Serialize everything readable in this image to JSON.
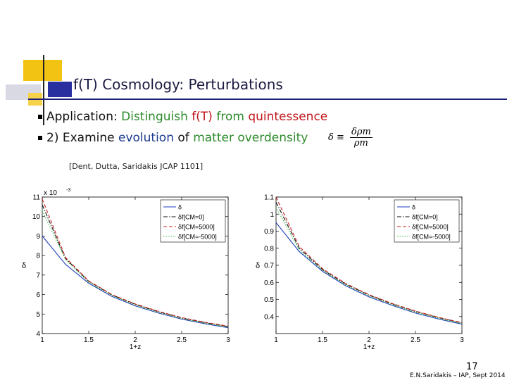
{
  "slide": {
    "title": "f(T) Cosmology: Perturbations",
    "bullet1": {
      "prefix": "Application: ",
      "w1": "Distinguish ",
      "w2": "f(T)",
      "w3": " from ",
      "w4": "quintessence"
    },
    "bullet2": {
      "prefix": "2)  Examine ",
      "w1": "evolution",
      "w2": " of ",
      "w3": "matter overdensity"
    },
    "formula": {
      "lhs": "δ ≡",
      "num": "δρm",
      "den": "ρm"
    },
    "reference": "[Dent, Dutta, Saridakis  JCAP 1101]",
    "page_number": "17",
    "footer": "E.N.Saridakis – IAP, Sept 2014",
    "colors": {
      "title_rule": "#1b1f7a",
      "green": "#2e8b2e",
      "red": "#c0161b",
      "blue": "#1a3a8f",
      "deco_yellow": "#f2c313",
      "deco_blue": "#2a2fa0"
    }
  },
  "chart_data": [
    {
      "type": "line",
      "xlabel": "1+z",
      "ylabel": "δ",
      "multiplier": "x 10",
      "multiplier_exp": "-3",
      "xlim": [
        1,
        3
      ],
      "ylim": [
        4,
        11
      ],
      "xticks": [
        1,
        1.5,
        2,
        2.5,
        3
      ],
      "yticks": [
        4,
        5,
        6,
        7,
        8,
        9,
        10,
        11
      ],
      "legend_position": "top-right",
      "series": [
        {
          "name": "δ",
          "color": "#1f3fbf",
          "dash": "solid",
          "x": [
            1,
            1.25,
            1.5,
            1.75,
            2,
            2.25,
            2.5,
            2.75,
            3
          ],
          "y": [
            9.0,
            7.55,
            6.58,
            5.9,
            5.42,
            5.05,
            4.74,
            4.5,
            4.3
          ]
        },
        {
          "name": "δf[CM=0]",
          "color": "#111111",
          "dash": "dashdot",
          "x": [
            1,
            1.25,
            1.5,
            1.75,
            2,
            2.25,
            2.5,
            2.75,
            3
          ],
          "y": [
            10.6,
            7.85,
            6.68,
            5.98,
            5.5,
            5.12,
            4.8,
            4.56,
            4.36
          ]
        },
        {
          "name": "δf[CM=5000]",
          "color": "#cc2222",
          "dash": "dash",
          "x": [
            1,
            1.25,
            1.5,
            1.75,
            2,
            2.25,
            2.5,
            2.75,
            3
          ],
          "y": [
            10.9,
            7.9,
            6.7,
            6.0,
            5.52,
            5.14,
            4.82,
            4.58,
            4.38
          ]
        },
        {
          "name": "δf[CM=-5000]",
          "color": "#44bb44",
          "dash": "dot",
          "x": [
            1,
            1.25,
            1.5,
            1.75,
            2,
            2.25,
            2.5,
            2.75,
            3
          ],
          "y": [
            10.3,
            7.8,
            6.62,
            5.95,
            5.46,
            5.08,
            4.77,
            4.53,
            4.33
          ]
        }
      ]
    },
    {
      "type": "line",
      "xlabel": "1+z",
      "ylabel": "δ",
      "xlim": [
        1,
        3
      ],
      "ylim": [
        0.3,
        1.1
      ],
      "xticks": [
        1,
        1.5,
        2,
        2.5,
        3
      ],
      "yticks": [
        0.4,
        0.5,
        0.6,
        0.7,
        0.8,
        0.9,
        1,
        1.1
      ],
      "legend_position": "top-right",
      "series": [
        {
          "name": "δ",
          "color": "#1f3fbf",
          "dash": "solid",
          "x": [
            1,
            1.25,
            1.5,
            1.75,
            2,
            2.25,
            2.5,
            2.75,
            3
          ],
          "y": [
            0.95,
            0.78,
            0.665,
            0.58,
            0.515,
            0.465,
            0.42,
            0.385,
            0.355
          ]
        },
        {
          "name": "δf[CM=0]",
          "color": "#111111",
          "dash": "dashdot",
          "x": [
            1,
            1.25,
            1.5,
            1.75,
            2,
            2.25,
            2.5,
            2.75,
            3
          ],
          "y": [
            1.07,
            0.8,
            0.675,
            0.59,
            0.525,
            0.473,
            0.43,
            0.393,
            0.362
          ]
        },
        {
          "name": "δf[CM=5000]",
          "color": "#cc2222",
          "dash": "dash",
          "x": [
            1,
            1.25,
            1.5,
            1.75,
            2,
            2.25,
            2.5,
            2.75,
            3
          ],
          "y": [
            1.1,
            0.81,
            0.68,
            0.593,
            0.528,
            0.476,
            0.432,
            0.395,
            0.364
          ]
        },
        {
          "name": "δf[CM=-5000]",
          "color": "#44bb44",
          "dash": "dot",
          "x": [
            1,
            1.25,
            1.5,
            1.75,
            2,
            2.25,
            2.5,
            2.75,
            3
          ],
          "y": [
            1.04,
            0.79,
            0.67,
            0.585,
            0.52,
            0.47,
            0.425,
            0.39,
            0.359
          ]
        }
      ]
    }
  ]
}
